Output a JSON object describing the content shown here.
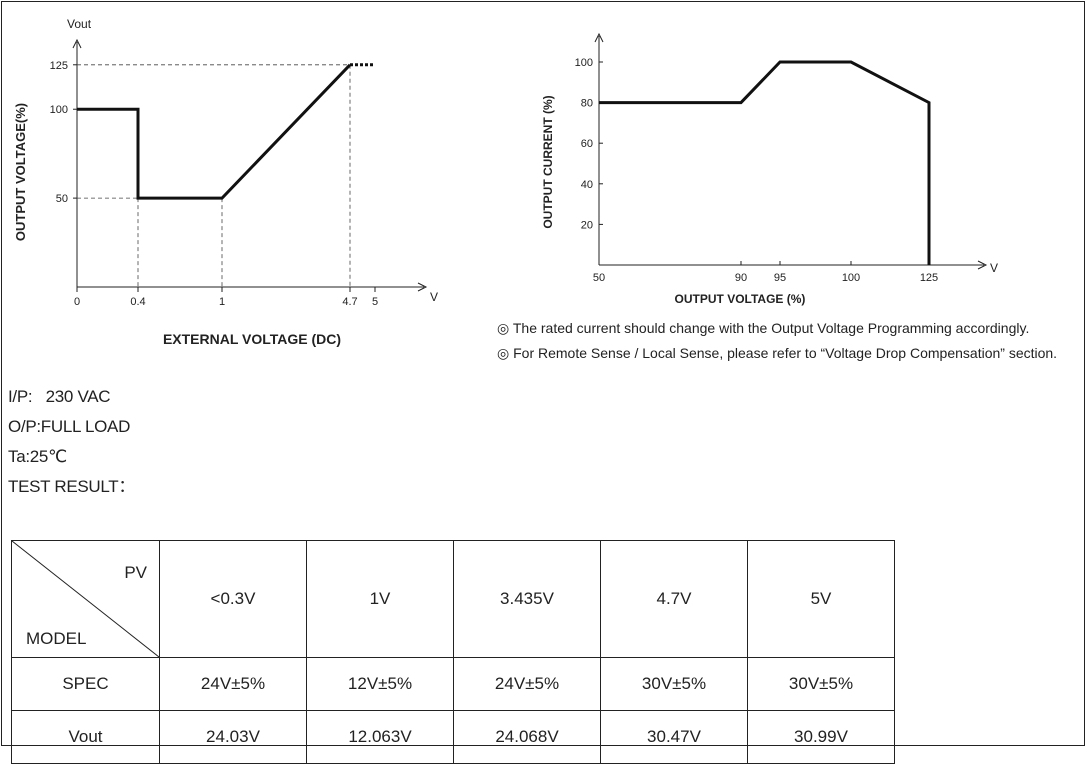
{
  "chart_data": [
    {
      "type": "line",
      "title": "",
      "xlabel": "EXTERNAL VOLTAGE (DC)",
      "ylabel": "OUTPUT VOLTAGE(%)",
      "y_axis_name": "Vout",
      "x_unit": "V",
      "x_ticks": [
        "0",
        "0.4",
        "1",
        "4.7",
        "5"
      ],
      "y_ticks": [
        "125",
        "100",
        "50"
      ],
      "xlim": [
        0,
        5.5
      ],
      "ylim": [
        0,
        135
      ],
      "series": [
        {
          "x": [
            0,
            0.4,
            0.4,
            1,
            4.7
          ],
          "y": [
            100,
            100,
            50,
            50,
            125
          ]
        }
      ],
      "dashed_extension": {
        "x": [
          4.7,
          5
        ],
        "y": [
          125,
          125
        ]
      }
    },
    {
      "type": "line",
      "title": "",
      "xlabel": "OUTPUT VOLTAGE (%)",
      "ylabel": "OUTPUT CURRENT (%)",
      "x_unit": "V",
      "x_ticks": [
        "50",
        "90",
        "95",
        "100",
        "125"
      ],
      "y_ticks": [
        "100",
        "80",
        "60",
        "40",
        "20"
      ],
      "xlim": [
        50,
        135
      ],
      "ylim": [
        0,
        110
      ],
      "series": [
        {
          "x": [
            50,
            90,
            95,
            100,
            125,
            125
          ],
          "y": [
            80,
            80,
            100,
            100,
            80,
            0
          ]
        }
      ]
    }
  ],
  "notes": [
    "◎ The rated current should change with the Output Voltage Programming accordingly.",
    "◎ For Remote Sense / Local Sense, please refer to “Voltage Drop Compensation” section."
  ],
  "test_info": {
    "ip": "I/P:   230 VAC",
    "op": "O/P:FULL LOAD",
    "ta": "Ta:25℃",
    "result_title": "TEST RESULT："
  },
  "table": {
    "corner_top": "PV",
    "corner_bottom": "MODEL",
    "columns": [
      "<0.3V",
      "1V",
      "3.435V",
      "4.7V",
      "5V"
    ],
    "rows": [
      {
        "label": "SPEC",
        "values": [
          "24V±5%",
          "12V±5%",
          "24V±5%",
          "30V±5%",
          "30V±5%"
        ]
      },
      {
        "label": "Vout",
        "values": [
          "24.03V",
          "12.063V",
          "24.068V",
          "30.47V",
          "30.99V"
        ]
      }
    ]
  }
}
